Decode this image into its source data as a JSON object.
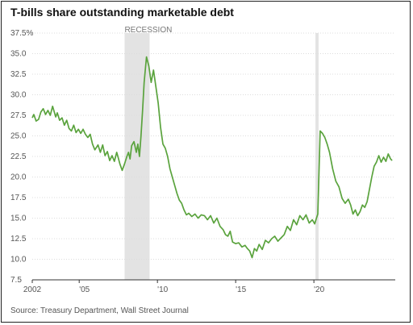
{
  "title": "T-bills share outstanding marketable debt",
  "source": "Source: Treasury Department, Wall Street Journal",
  "colors": {
    "line": "#5aa33d",
    "recession": "#e3e3e3",
    "grid": "#dcdcdc",
    "axis": "#333333"
  },
  "chart_data": {
    "type": "line",
    "title": "T-bills share outstanding marketable debt",
    "xlabel": "",
    "ylabel": "",
    "xlim": [
      2002,
      2025.2
    ],
    "ylim": [
      7.5,
      37.5
    ],
    "grid": true,
    "y_ticks": [
      7.5,
      10.0,
      12.5,
      15.0,
      17.5,
      20.0,
      22.5,
      25.0,
      27.5,
      30.0,
      32.5,
      35.0,
      37.5
    ],
    "y_tick_labels": [
      "7.5",
      "10.0",
      "12.5",
      "15.0",
      "17.5",
      "20.0",
      "22.5",
      "25.0",
      "27.5",
      "30.0",
      "32.5",
      "35.0",
      "37.5%"
    ],
    "x_ticks": [
      2002,
      2005,
      2010,
      2015,
      2020
    ],
    "x_tick_labels": [
      "2002",
      "'05",
      "'10",
      "'15",
      "'20"
    ],
    "annotations": [
      {
        "type": "band",
        "label": "RECESSION",
        "start": 2007.9,
        "end": 2009.5
      },
      {
        "type": "band",
        "label": "",
        "start": 2020.1,
        "end": 2020.3
      }
    ],
    "series": [
      {
        "x": [
          2002.0,
          2002.1,
          2002.25,
          2002.4,
          2002.55,
          2002.7,
          2002.85,
          2003.0,
          2003.15,
          2003.3,
          2003.5,
          2003.6,
          2003.75,
          2003.9,
          2004.05,
          2004.2,
          2004.35,
          2004.5,
          2004.65,
          2004.8,
          2004.95,
          2005.1,
          2005.25,
          2005.4,
          2005.55,
          2005.7,
          2005.85,
          2006.0,
          2006.2,
          2006.35,
          2006.5,
          2006.65,
          2006.8,
          2006.95,
          2007.1,
          2007.25,
          2007.4,
          2007.5,
          2007.6,
          2007.75,
          2007.9,
          2008.05,
          2008.15,
          2008.25,
          2008.35,
          2008.5,
          2008.65,
          2008.75,
          2008.85,
          2008.95,
          2009.05,
          2009.15,
          2009.3,
          2009.45,
          2009.6,
          2009.75,
          2009.9,
          2010.05,
          2010.2,
          2010.35,
          2010.5,
          2010.65,
          2010.8,
          2010.95,
          2011.1,
          2011.25,
          2011.4,
          2011.55,
          2011.7,
          2011.85,
          2012.0,
          2012.2,
          2012.4,
          2012.6,
          2012.8,
          2013.0,
          2013.2,
          2013.4,
          2013.6,
          2013.8,
          2014.0,
          2014.2,
          2014.35,
          2014.5,
          2014.65,
          2014.8,
          2015.0,
          2015.2,
          2015.4,
          2015.6,
          2015.75,
          2015.9,
          2016.05,
          2016.2,
          2016.35,
          2016.5,
          2016.7,
          2016.9,
          2017.1,
          2017.3,
          2017.5,
          2017.7,
          2017.9,
          2018.1,
          2018.3,
          2018.5,
          2018.7,
          2018.9,
          2019.1,
          2019.3,
          2019.5,
          2019.7,
          2019.9,
          2020.05,
          2020.15,
          2020.25,
          2020.4,
          2020.55,
          2020.7,
          2020.85,
          2021.0,
          2021.2,
          2021.4,
          2021.6,
          2021.8,
          2022.0,
          2022.2,
          2022.35,
          2022.5,
          2022.65,
          2022.8,
          2022.95,
          2023.1,
          2023.25,
          2023.4,
          2023.55,
          2023.7,
          2023.85,
          2024.0,
          2024.15,
          2024.3,
          2024.45,
          2024.6,
          2024.75,
          2024.9,
          2025.0
        ],
        "y": [
          27.2,
          27.6,
          26.8,
          27.0,
          27.9,
          28.3,
          27.6,
          28.1,
          27.5,
          28.6,
          27.3,
          27.8,
          26.9,
          27.2,
          26.3,
          26.9,
          25.9,
          25.6,
          26.3,
          25.4,
          25.8,
          25.3,
          25.8,
          25.2,
          24.8,
          25.2,
          24.0,
          23.3,
          23.9,
          23.0,
          23.9,
          22.6,
          23.1,
          22.0,
          22.6,
          21.9,
          23.0,
          22.3,
          21.6,
          20.8,
          21.6,
          22.5,
          23.0,
          22.2,
          23.8,
          24.3,
          23.0,
          24.0,
          22.5,
          25.0,
          28.0,
          31.5,
          34.6,
          33.5,
          31.5,
          33.0,
          31.0,
          29.0,
          26.0,
          24.0,
          23.5,
          22.5,
          21.0,
          20.0,
          19.0,
          18.0,
          17.2,
          16.8,
          16.0,
          15.4,
          15.6,
          15.2,
          15.5,
          15.0,
          15.4,
          15.3,
          14.8,
          15.3,
          14.4,
          15.0,
          14.0,
          13.6,
          13.0,
          12.8,
          13.4,
          12.1,
          11.9,
          12.0,
          11.5,
          11.7,
          11.3,
          11.0,
          10.2,
          11.3,
          11.0,
          11.8,
          11.2,
          12.3,
          12.0,
          12.5,
          12.8,
          12.2,
          12.6,
          13.0,
          14.0,
          13.5,
          14.8,
          14.2,
          15.3,
          14.8,
          15.4,
          14.4,
          14.8,
          14.3,
          14.9,
          15.5,
          25.6,
          25.3,
          24.8,
          24.0,
          23.0,
          21.0,
          19.5,
          18.8,
          17.4,
          16.8,
          17.3,
          16.6,
          15.5,
          16.0,
          15.3,
          15.8,
          16.6,
          16.3,
          17.0,
          18.5,
          20.0,
          21.3,
          21.8,
          22.6,
          21.8,
          22.4,
          21.9,
          22.8,
          22.2,
          22.0
        ]
      }
    ]
  }
}
